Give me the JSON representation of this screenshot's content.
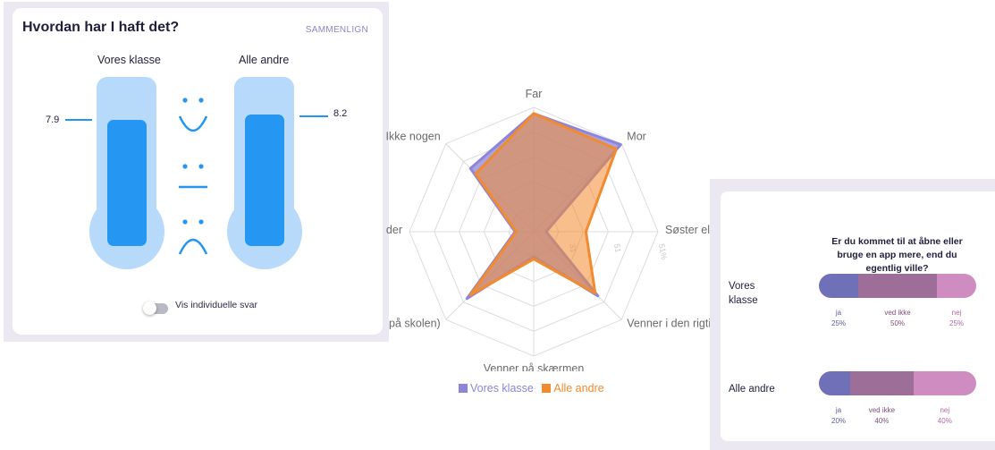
{
  "wellbeing_card": {
    "title": "Hvordan har I haft det?",
    "compare_button": "SAMMENLIGN",
    "our_class": {
      "label": "Vores klasse",
      "value": "7.9"
    },
    "all_others": {
      "label": "Alle andre",
      "value": "8.2"
    },
    "faces": [
      "smiley-happy-icon",
      "smiley-neutral-icon",
      "smiley-sad-icon"
    ],
    "toggle_label": "Vis individuelle svar",
    "toggle_on": false,
    "colors": {
      "tube": "#b7dafb",
      "fill": "#2696f3"
    }
  },
  "radar": {
    "axes": [
      "Far",
      "Mor",
      "Søster eller",
      "Venner i den rigtig",
      "Venner på skærmen",
      "på skolen)",
      "der",
      "Ikke nogen"
    ],
    "ring_labels": [
      "51%",
      "51",
      "31"
    ],
    "series": [
      {
        "name": "Vores klasse",
        "color": "#8c85db",
        "values": [
          0.95,
          0.99,
          0.1,
          0.73,
          0.2,
          0.76,
          0.15,
          0.72
        ]
      },
      {
        "name": "Alle andre",
        "color": "#f28a2e",
        "values": [
          0.95,
          0.94,
          0.42,
          0.7,
          0.22,
          0.72,
          0.14,
          0.66
        ]
      }
    ]
  },
  "app_card": {
    "question": "Er du kommet til at åbne eller bruge en app mere, end du egentlig ville?",
    "rows": [
      {
        "label": "Vores klasse",
        "segments": [
          {
            "name": "ja",
            "pct": "25%",
            "value": 25,
            "color": "#6f70b8"
          },
          {
            "name": "ved ikke",
            "pct": "50%",
            "value": 50,
            "color": "#9c6e98"
          },
          {
            "name": "nej",
            "pct": "25%",
            "value": 25,
            "color": "#cf8cc1"
          }
        ]
      },
      {
        "label": "Alle andre",
        "segments": [
          {
            "name": "ja",
            "pct": "20%",
            "value": 20,
            "color": "#6f70b8"
          },
          {
            "name": "ved ikke",
            "pct": "40%",
            "value": 40,
            "color": "#9c6e98"
          },
          {
            "name": "nej",
            "pct": "40%",
            "value": 40,
            "color": "#cf8cc1"
          }
        ]
      }
    ]
  }
}
